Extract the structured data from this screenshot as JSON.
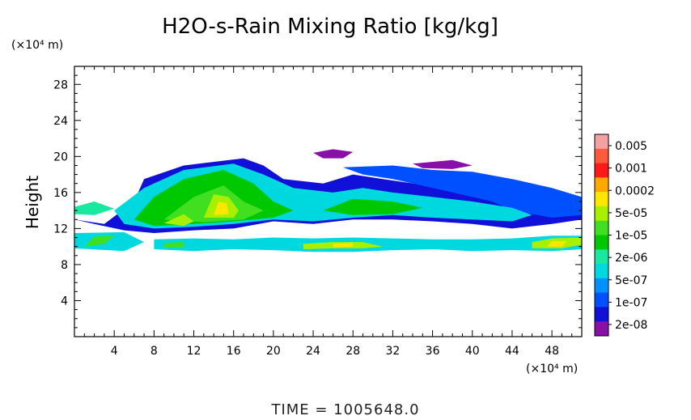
{
  "chart_data": {
    "type": "heatmap",
    "title": "H2O-s-Rain Mixing Ratio [kg/kg]",
    "ylabel": "Height",
    "y_unit": "(×10⁴ m)",
    "x_unit": "(×10⁴ m)",
    "xlim": [
      0,
      51
    ],
    "ylim": [
      0,
      30
    ],
    "x_ticks": [
      "4",
      "8",
      "12",
      "16",
      "20",
      "24",
      "28",
      "32",
      "36",
      "40",
      "44",
      "48"
    ],
    "y_ticks": [
      "4",
      "8",
      "12",
      "16",
      "20",
      "24",
      "28"
    ],
    "x_tick_values": [
      4,
      8,
      12,
      16,
      20,
      24,
      28,
      32,
      36,
      40,
      44,
      48
    ],
    "y_tick_values": [
      4,
      8,
      12,
      16,
      20,
      24,
      28
    ],
    "colorbar": {
      "levels": [
        "0.005",
        "0.001",
        "0.0002",
        "5e-05",
        "1e-05",
        "2e-06",
        "5e-07",
        "1e-07",
        "2e-08"
      ],
      "colors": [
        "#f4a1a1",
        "#ff5a3c",
        "#ff1a1a",
        "#ffa800",
        "#ffe600",
        "#a8f000",
        "#40e020",
        "#00c800",
        "#18e8a0",
        "#00d8e0",
        "#0090ff",
        "#0050ff",
        "#1010d8",
        "#8810a8"
      ]
    },
    "regions": [
      {
        "cat": 1,
        "pts": [
          [
            0,
            13
          ],
          [
            3,
            12.5
          ],
          [
            6,
            15
          ],
          [
            7,
            17.5
          ],
          [
            11,
            19
          ],
          [
            17,
            19.8
          ],
          [
            19,
            19
          ],
          [
            21,
            17.5
          ],
          [
            25,
            17
          ],
          [
            28,
            18
          ],
          [
            31,
            17.5
          ],
          [
            34,
            17
          ],
          [
            38,
            16.5
          ],
          [
            40,
            16
          ],
          [
            42,
            15.5
          ],
          [
            46,
            15
          ],
          [
            49,
            14
          ],
          [
            51,
            14
          ],
          [
            51,
            13
          ],
          [
            48,
            12.5
          ],
          [
            44,
            12
          ],
          [
            40,
            12.5
          ],
          [
            36,
            12.8
          ],
          [
            32,
            13
          ],
          [
            28,
            13
          ],
          [
            24,
            12.5
          ],
          [
            20,
            12.8
          ],
          [
            16,
            12
          ],
          [
            12,
            11.8
          ],
          [
            8,
            11.5
          ],
          [
            5,
            11.8
          ],
          [
            2,
            12.5
          ]
        ]
      },
      {
        "cat": 2,
        "pts": [
          [
            27,
            18.8
          ],
          [
            32,
            19
          ],
          [
            36,
            18.5
          ],
          [
            40,
            18.3
          ],
          [
            44,
            17.5
          ],
          [
            48,
            16.5
          ],
          [
            51,
            15.5
          ],
          [
            51,
            13.5
          ],
          [
            48,
            13.2
          ],
          [
            44,
            14
          ],
          [
            42,
            15
          ],
          [
            40,
            15.5
          ],
          [
            36,
            16.5
          ],
          [
            32,
            17.5
          ],
          [
            29,
            18
          ]
        ]
      },
      {
        "cat": 0,
        "pts": [
          [
            24,
            20.4
          ],
          [
            26,
            20.8
          ],
          [
            28,
            20.5
          ],
          [
            27,
            19.8
          ],
          [
            25,
            19.8
          ]
        ]
      },
      {
        "cat": 0,
        "pts": [
          [
            34,
            19.2
          ],
          [
            38,
            19.6
          ],
          [
            40,
            19
          ],
          [
            38,
            18.6
          ],
          [
            35,
            18.7
          ]
        ]
      },
      {
        "cat": 4,
        "pts": [
          [
            4,
            14
          ],
          [
            7,
            16.5
          ],
          [
            11,
            18.5
          ],
          [
            16,
            19.2
          ],
          [
            19,
            18
          ],
          [
            22,
            16.5
          ],
          [
            26,
            16
          ],
          [
            29,
            16.5
          ],
          [
            32,
            16
          ],
          [
            36,
            15.5
          ],
          [
            40,
            15
          ],
          [
            44,
            14.3
          ],
          [
            46,
            13.5
          ],
          [
            44,
            12.8
          ],
          [
            40,
            13
          ],
          [
            36,
            13.2
          ],
          [
            32,
            13.5
          ],
          [
            28,
            13.2
          ],
          [
            24,
            12.8
          ],
          [
            20,
            13
          ],
          [
            16,
            12.5
          ],
          [
            12,
            12.2
          ],
          [
            8,
            12
          ],
          [
            5,
            12.5
          ]
        ]
      },
      {
        "cat": 6,
        "pts": [
          [
            6,
            13
          ],
          [
            8,
            15.5
          ],
          [
            11,
            17.5
          ],
          [
            15,
            18.5
          ],
          [
            18,
            17
          ],
          [
            20,
            15
          ],
          [
            22,
            14
          ],
          [
            20,
            13.2
          ],
          [
            16,
            12.8
          ],
          [
            12,
            12.5
          ],
          [
            8,
            12.3
          ]
        ]
      },
      {
        "cat": 6,
        "pts": [
          [
            25,
            14
          ],
          [
            28,
            15.3
          ],
          [
            32,
            15
          ],
          [
            35,
            14.3
          ],
          [
            32,
            13.6
          ],
          [
            28,
            13.5
          ]
        ]
      },
      {
        "cat": 7,
        "pts": [
          [
            9,
            13
          ],
          [
            12,
            15.5
          ],
          [
            15,
            16.8
          ],
          [
            17,
            15
          ],
          [
            19,
            14
          ],
          [
            17,
            13
          ],
          [
            13,
            12.7
          ]
        ]
      },
      {
        "cat": 8,
        "pts": [
          [
            13,
            13.2
          ],
          [
            14,
            15.8
          ],
          [
            15.5,
            15.5
          ],
          [
            16.5,
            14
          ],
          [
            16,
            13.2
          ]
        ]
      },
      {
        "cat": 9,
        "pts": [
          [
            14,
            13.5
          ],
          [
            14.5,
            15
          ],
          [
            15.3,
            14.8
          ],
          [
            15.5,
            13.6
          ]
        ]
      },
      {
        "cat": 8,
        "pts": [
          [
            9,
            12.6
          ],
          [
            11,
            13.6
          ],
          [
            12,
            12.8
          ],
          [
            11,
            12.3
          ]
        ]
      },
      {
        "cat": 5,
        "pts": [
          [
            0,
            14.4
          ],
          [
            2,
            15
          ],
          [
            4,
            14.2
          ],
          [
            2,
            13.5
          ],
          [
            0,
            13.6
          ]
        ]
      },
      {
        "cat": 4,
        "pts": [
          [
            0,
            9.8
          ],
          [
            5,
            9.5
          ],
          [
            7,
            10.5
          ],
          [
            5,
            11.6
          ],
          [
            0,
            11.5
          ]
        ]
      },
      {
        "cat": 7,
        "pts": [
          [
            1,
            10
          ],
          [
            3,
            10.3
          ],
          [
            4,
            11.2
          ],
          [
            2,
            11.1
          ]
        ]
      },
      {
        "cat": 4,
        "pts": [
          [
            8,
            9.7
          ],
          [
            12,
            9.5
          ],
          [
            16,
            9.7
          ],
          [
            20,
            9.6
          ],
          [
            24,
            9.4
          ],
          [
            28,
            9.4
          ],
          [
            32,
            9.6
          ],
          [
            36,
            9.7
          ],
          [
            40,
            9.5
          ],
          [
            44,
            9.6
          ],
          [
            48,
            9.5
          ],
          [
            51,
            9.7
          ],
          [
            51,
            11.2
          ],
          [
            48,
            11.2
          ],
          [
            44,
            10.9
          ],
          [
            40,
            10.8
          ],
          [
            36,
            10.8
          ],
          [
            32,
            10.9
          ],
          [
            28,
            11
          ],
          [
            24,
            10.9
          ],
          [
            20,
            11
          ],
          [
            16,
            10.8
          ],
          [
            12,
            10.9
          ],
          [
            8,
            10.8
          ]
        ]
      },
      {
        "cat": 8,
        "pts": [
          [
            23,
            9.7
          ],
          [
            26,
            9.8
          ],
          [
            29,
            9.8
          ],
          [
            31,
            10
          ],
          [
            29,
            10.5
          ],
          [
            26,
            10.5
          ],
          [
            23,
            10.3
          ]
        ]
      },
      {
        "cat": 9,
        "pts": [
          [
            26,
            9.9
          ],
          [
            28,
            10
          ],
          [
            28,
            10.4
          ],
          [
            26,
            10.3
          ]
        ]
      },
      {
        "cat": 8,
        "pts": [
          [
            46,
            9.8
          ],
          [
            49,
            9.8
          ],
          [
            51,
            10.2
          ],
          [
            51,
            11
          ],
          [
            48,
            10.9
          ],
          [
            46,
            10.5
          ]
        ]
      },
      {
        "cat": 9,
        "pts": [
          [
            47.5,
            10
          ],
          [
            49,
            10
          ],
          [
            49.5,
            10.6
          ],
          [
            48,
            10.6
          ]
        ]
      },
      {
        "cat": 7,
        "pts": [
          [
            9,
            9.9
          ],
          [
            11,
            9.9
          ],
          [
            11,
            10.5
          ],
          [
            9,
            10.4
          ]
        ]
      }
    ]
  },
  "time_label": "TIME = 1005648.0"
}
